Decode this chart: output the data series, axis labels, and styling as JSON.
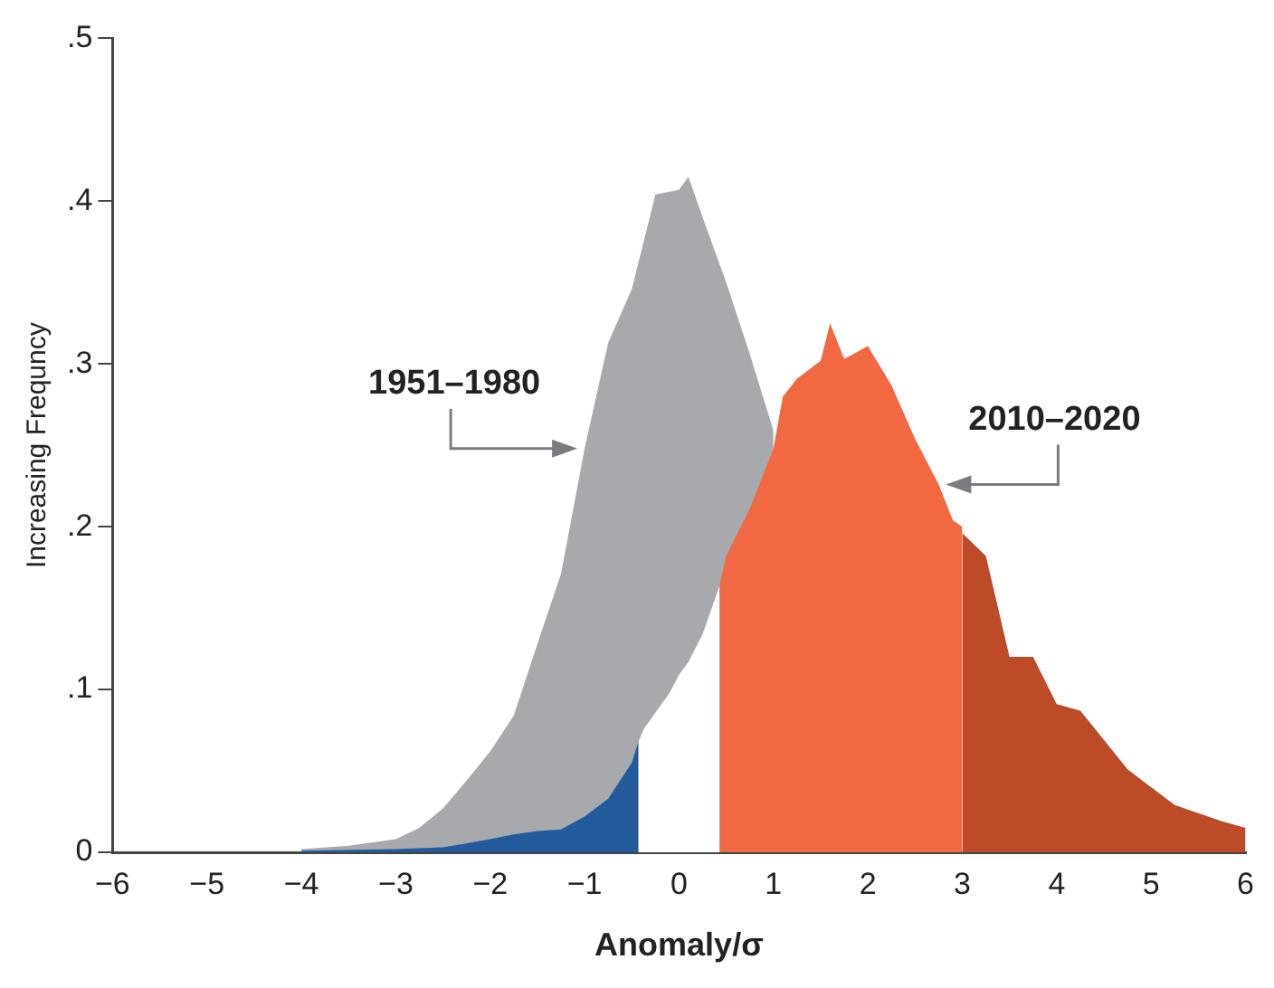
{
  "chart_data": {
    "type": "area",
    "xlabel": "Anomaly/σ",
    "ylabel": "Increasing Frequncy",
    "xlim": [
      -6,
      6
    ],
    "xticks": [
      -6,
      -5,
      -4,
      -3,
      -2,
      -1,
      0,
      1,
      2,
      3,
      4,
      5,
      6
    ],
    "ylim": [
      0,
      0.5
    ],
    "yticks": [
      0,
      {
        "value": 0.1,
        "label": ".1"
      },
      {
        "value": 0.2,
        "label": ".2"
      },
      {
        "value": 0.3,
        "label": ".3"
      },
      {
        "value": 0.4,
        "label": ".4"
      },
      {
        "value": 0.5,
        "label": ".5"
      }
    ],
    "grid": false,
    "legend": false,
    "series": [
      {
        "color": "#a7a9ac",
        "x": [
          -4,
          -3.5,
          -3,
          -2.75,
          -2.5,
          -2.25,
          -2,
          -1.75,
          -1.5,
          -1.25,
          -1,
          -0.75,
          -0.5,
          -0.25,
          0,
          0.1,
          0.25,
          0.5,
          0.75,
          1
        ],
        "values": [
          0.002,
          0.004,
          0.008,
          0.015,
          0.027,
          0.044,
          0.062,
          0.084,
          0.128,
          0.171,
          0.248,
          0.313,
          0.346,
          0.404,
          0.407,
          0.415,
          0.39,
          0.35,
          0.306,
          0.259
        ]
      },
      {
        "color": "#235a9c",
        "x": [
          -4,
          -3,
          -2.5,
          -2,
          -1.75,
          -1.5,
          -1.25,
          -1,
          -0.75,
          -0.5,
          -0.43
        ],
        "values": [
          0.001,
          0.002,
          0.003,
          0.008,
          0.011,
          0.013,
          0.014,
          0.022,
          0.033,
          0.055,
          0.068
        ]
      },
      {
        "color": "#ffffff",
        "x": [
          -0.43,
          -0.37,
          -0.1,
          0,
          0.1,
          0.25,
          0.43
        ],
        "values": [
          0.068,
          0.076,
          0.098,
          0.109,
          0.117,
          0.134,
          0.164
        ]
      },
      {
        "color": "#f26841",
        "x": [
          0.43,
          0.5,
          0.75,
          1,
          1.1,
          1.25,
          1.5,
          1.6,
          1.75,
          2,
          2.25,
          2.5,
          2.75,
          2.9,
          3
        ],
        "values": [
          0.164,
          0.182,
          0.211,
          0.248,
          0.28,
          0.291,
          0.302,
          0.325,
          0.303,
          0.311,
          0.287,
          0.254,
          0.226,
          0.204,
          0.2
        ]
      },
      {
        "color": "#bd4b27",
        "x": [
          3,
          3.25,
          3.5,
          3.75,
          4,
          4.25,
          4.5,
          4.75,
          5,
          5.25,
          5.5,
          5.75,
          6
        ],
        "values": [
          0.196,
          0.182,
          0.12,
          0.12,
          0.091,
          0.087,
          0.069,
          0.051,
          0.04,
          0.029,
          0.024,
          0.019,
          0.015
        ]
      }
    ],
    "annotations": [
      {
        "text": "1951–1980",
        "x": -1,
        "y": 0.248
      },
      {
        "text": "2010–2020",
        "x": 2.75,
        "y": 0.226
      }
    ]
  }
}
